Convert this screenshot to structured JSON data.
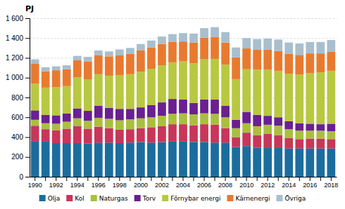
{
  "chart_data": {
    "type": "bar",
    "stacked": true,
    "grid": true,
    "legend": "bottom",
    "ylabel": "PJ",
    "categories": [
      "1990",
      null,
      "1992",
      null,
      "1994",
      null,
      "1996",
      null,
      "1998",
      null,
      "2000",
      null,
      "2002",
      null,
      "2004",
      null,
      "2006",
      null,
      "2008",
      null,
      "2010",
      null,
      "2012",
      null,
      "2014",
      null,
      "2016",
      null,
      "2018"
    ],
    "series": [
      {
        "name": "Olja",
        "color": "#1b6d9e",
        "values": [
          360,
          360,
          340,
          340,
          340,
          335,
          345,
          345,
          340,
          345,
          350,
          345,
          350,
          355,
          355,
          350,
          350,
          345,
          345,
          300,
          310,
          295,
          290,
          290,
          285,
          285,
          285,
          285,
          285
        ]
      },
      {
        "name": "Kol",
        "color": "#c8365a",
        "values": [
          155,
          120,
          130,
          145,
          170,
          150,
          160,
          145,
          135,
          135,
          140,
          155,
          160,
          175,
          175,
          170,
          180,
          180,
          145,
          100,
          135,
          125,
          145,
          130,
          105,
          95,
          100,
          100,
          95
        ]
      },
      {
        "name": "Naturgas",
        "color": "#aabf3e",
        "values": [
          60,
          60,
          65,
          70,
          80,
          80,
          90,
          95,
          95,
          100,
          100,
          100,
          105,
          105,
          110,
          110,
          110,
          110,
          110,
          90,
          95,
          90,
          90,
          95,
          90,
          85,
          80,
          80,
          80
        ]
      },
      {
        "name": "Torv",
        "color": "#6a2090",
        "values": [
          95,
          85,
          85,
          85,
          100,
          100,
          120,
          110,
          115,
          105,
          110,
          125,
          135,
          150,
          140,
          115,
          140,
          145,
          115,
          85,
          115,
          115,
          90,
          85,
          80,
          75,
          70,
          65,
          75
        ]
      },
      {
        "name": "Förnybar energi",
        "color": "#b8c840",
        "values": [
          270,
          275,
          285,
          275,
          315,
          315,
          320,
          325,
          340,
          350,
          360,
          365,
          375,
          370,
          385,
          400,
          405,
          410,
          415,
          410,
          430,
          455,
          465,
          470,
          480,
          490,
          510,
          525,
          535
        ]
      },
      {
        "name": "Kärnenergi",
        "color": "#e87a30",
        "values": [
          200,
          165,
          170,
          170,
          170,
          185,
          190,
          195,
          200,
          205,
          215,
          215,
          215,
          205,
          200,
          210,
          220,
          220,
          225,
          220,
          210,
          205,
          205,
          200,
          200,
          200,
          200,
          190,
          190
        ]
      },
      {
        "name": "Övriga",
        "color": "#a8bfce",
        "values": [
          45,
          40,
          40,
          40,
          45,
          45,
          50,
          50,
          60,
          60,
          65,
          70,
          75,
          80,
          85,
          90,
          95,
          100,
          105,
          100,
          105,
          105,
          110,
          115,
          115,
          115,
          115,
          115,
          120
        ]
      }
    ],
    "ylim": [
      0,
      1600
    ],
    "yticks": [
      0,
      200,
      400,
      600,
      800,
      {
        "value": 1000,
        "label": "1 000"
      },
      {
        "value": 1200,
        "label": "1 200"
      },
      {
        "value": 1400,
        "label": "1 400"
      },
      {
        "value": 1600,
        "label": "1 600"
      }
    ]
  }
}
